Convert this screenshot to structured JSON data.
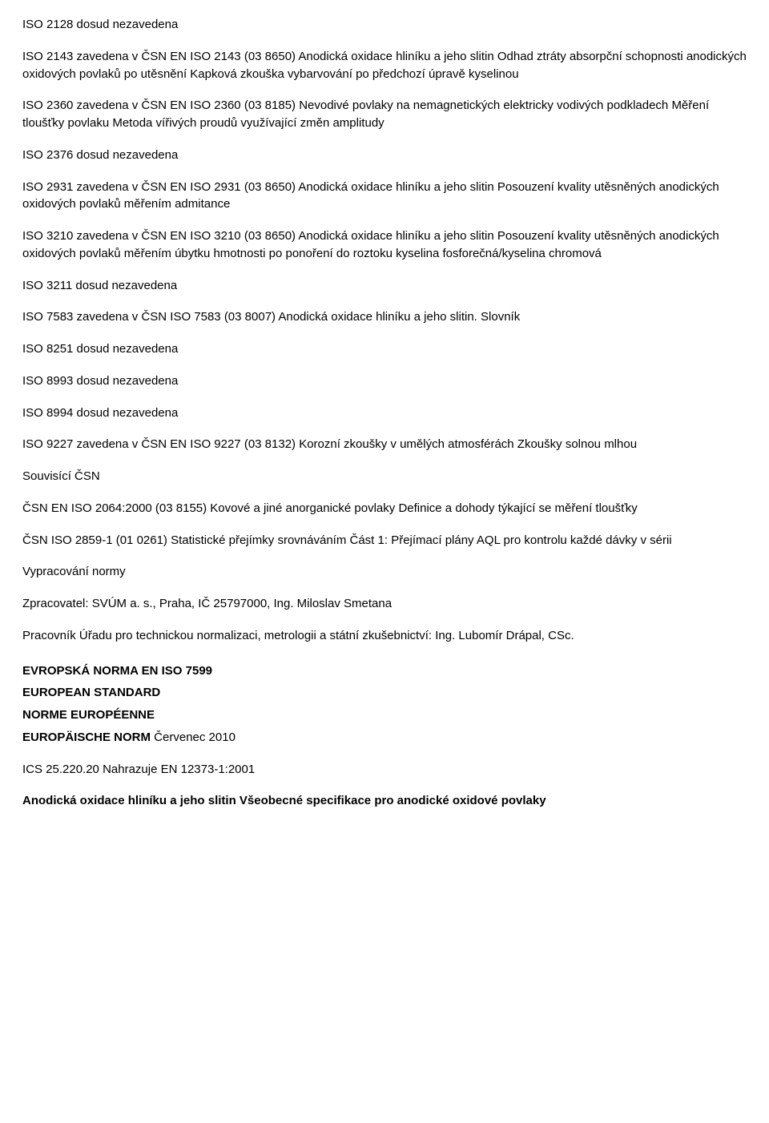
{
  "p1": "ISO 2128 dosud nezavedena",
  "p2": "ISO 2143 zavedena v ČSN EN ISO 2143 (03 8650) Anodická oxidace hliníku a jeho slitin Odhad ztráty absorpční schopnosti anodických oxidových povlaků po utěsnění Kapková zkouška vybarvování po předchozí úpravě kyselinou",
  "p3": "ISO 2360 zavedena v ČSN EN ISO 2360 (03 8185) Nevodivé povlaky na nemagnetických elektricky vodivých podkladech Měření tloušťky povlaku Metoda vířivých proudů využívající změn amplitudy",
  "p4": "ISO 2376 dosud nezavedena",
  "p5": "ISO 2931 zavedena v ČSN EN ISO 2931 (03 8650) Anodická oxidace hliníku a jeho slitin Posouzení kvality utěsněných anodických oxidových povlaků měřením admitance",
  "p6": "ISO 3210 zavedena v ČSN EN ISO 3210 (03 8650) Anodická oxidace hliníku a jeho slitin Posouzení kvality utěsněných anodických oxidových povlaků měřením úbytku hmotnosti po ponoření do roztoku kyselina fosforečná/kyselina chromová",
  "p7": "ISO 3211 dosud nezavedena",
  "p8": "ISO 7583 zavedena v ČSN ISO 7583 (03 8007) Anodická oxidace hliníku a jeho slitin. Slovník",
  "p9": "ISO 8251 dosud nezavedena",
  "p10": "ISO 8993 dosud nezavedena",
  "p11": "ISO 8994 dosud nezavedena",
  "p12": "ISO 9227 zavedena v ČSN EN ISO 9227 (03 8132) Korozní zkoušky v umělých atmosférách Zkoušky solnou mlhou",
  "p13": "Souvisící ČSN",
  "p14": "ČSN EN ISO 2064:2000 (03 8155) Kovové a jiné anorganické povlaky Definice a dohody týkající se měření tloušťky",
  "p15": "ČSN ISO 2859-1 (01 0261) Statistické přejímky srovnáváním Část 1: Přejímací plány AQL pro kontrolu každé dávky v sérii",
  "p16": "Vypracování normy",
  "p17": "Zpracovatel: SVÚM a. s., Praha, IČ 25797000, Ing. Miloslav Smetana",
  "p18": "Pracovník Úřadu pro technickou normalizaci, metrologii a státní zkušebnictví: Ing. Lubomír Drápal, CSc.",
  "h1": "EVROPSKÁ NORMA EN ISO 7599",
  "h2": "EUROPEAN STANDARD",
  "h3": "NORME EUROPÉENNE",
  "h4a": "EUROPÄISCHE NORM",
  "h4b": " Červenec 2010",
  "p19": "ICS 25.220.20 Nahrazuje EN 12373-1:2001",
  "p20": "Anodická oxidace hliníku a jeho slitin Všeobecné specifikace pro anodické oxidové povlaky"
}
